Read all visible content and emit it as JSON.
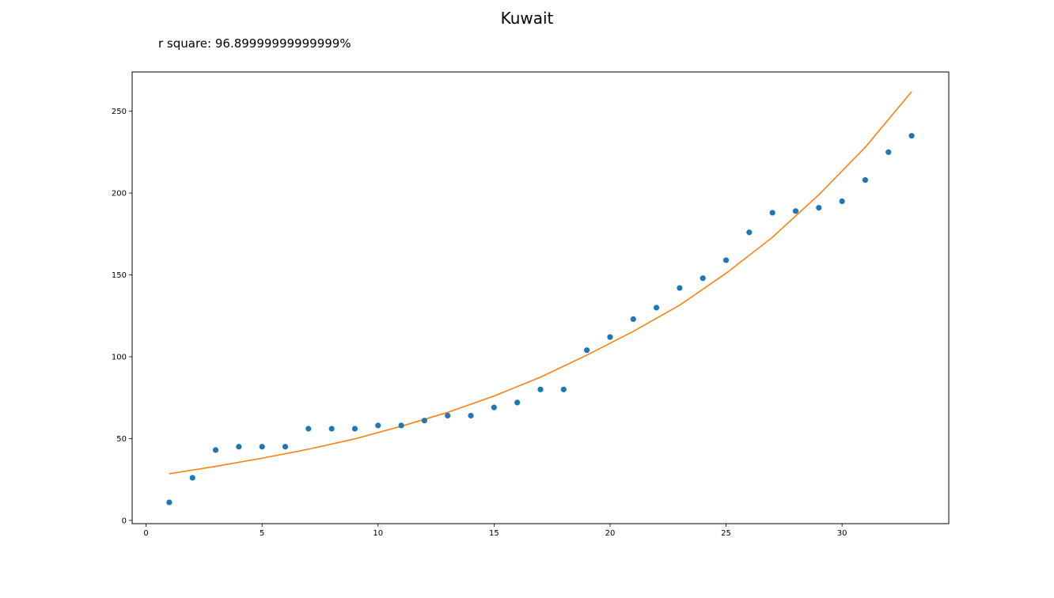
{
  "chart_data": {
    "type": "scatter",
    "title": "Kuwait",
    "annotation": "r square: 96.89999999999999%",
    "xlabel": "",
    "ylabel": "",
    "xlim": [
      -0.6,
      34.6
    ],
    "ylim": [
      -2,
      274
    ],
    "xticks": [
      0,
      5,
      10,
      15,
      20,
      25,
      30
    ],
    "yticks": [
      0,
      50,
      100,
      150,
      200,
      250
    ],
    "grid": false,
    "series": [
      {
        "kind": "scatter",
        "color": "#1f77b4",
        "x": [
          1,
          2,
          3,
          4,
          5,
          6,
          7,
          8,
          9,
          10,
          11,
          12,
          13,
          14,
          15,
          16,
          17,
          18,
          19,
          20,
          21,
          22,
          23,
          24,
          25,
          26,
          27,
          28,
          29,
          30,
          31,
          32,
          33
        ],
        "y": [
          11,
          26,
          43,
          45,
          45,
          45,
          56,
          56,
          56,
          58,
          58,
          61,
          64,
          64,
          69,
          72,
          80,
          80,
          104,
          112,
          123,
          130,
          142,
          148,
          159,
          176,
          188,
          189,
          191,
          195,
          208,
          225,
          235
        ]
      },
      {
        "kind": "line",
        "color": "#ff7f0e",
        "x": [
          1,
          3,
          5,
          7,
          9,
          11,
          13,
          15,
          17,
          19,
          21,
          23,
          25,
          27,
          29,
          31,
          33
        ],
        "y": [
          28.5,
          33,
          38,
          43.5,
          49.8,
          57.5,
          66,
          76,
          87.5,
          101,
          115.5,
          131.5,
          151,
          173,
          199,
          228,
          262
        ]
      }
    ]
  }
}
